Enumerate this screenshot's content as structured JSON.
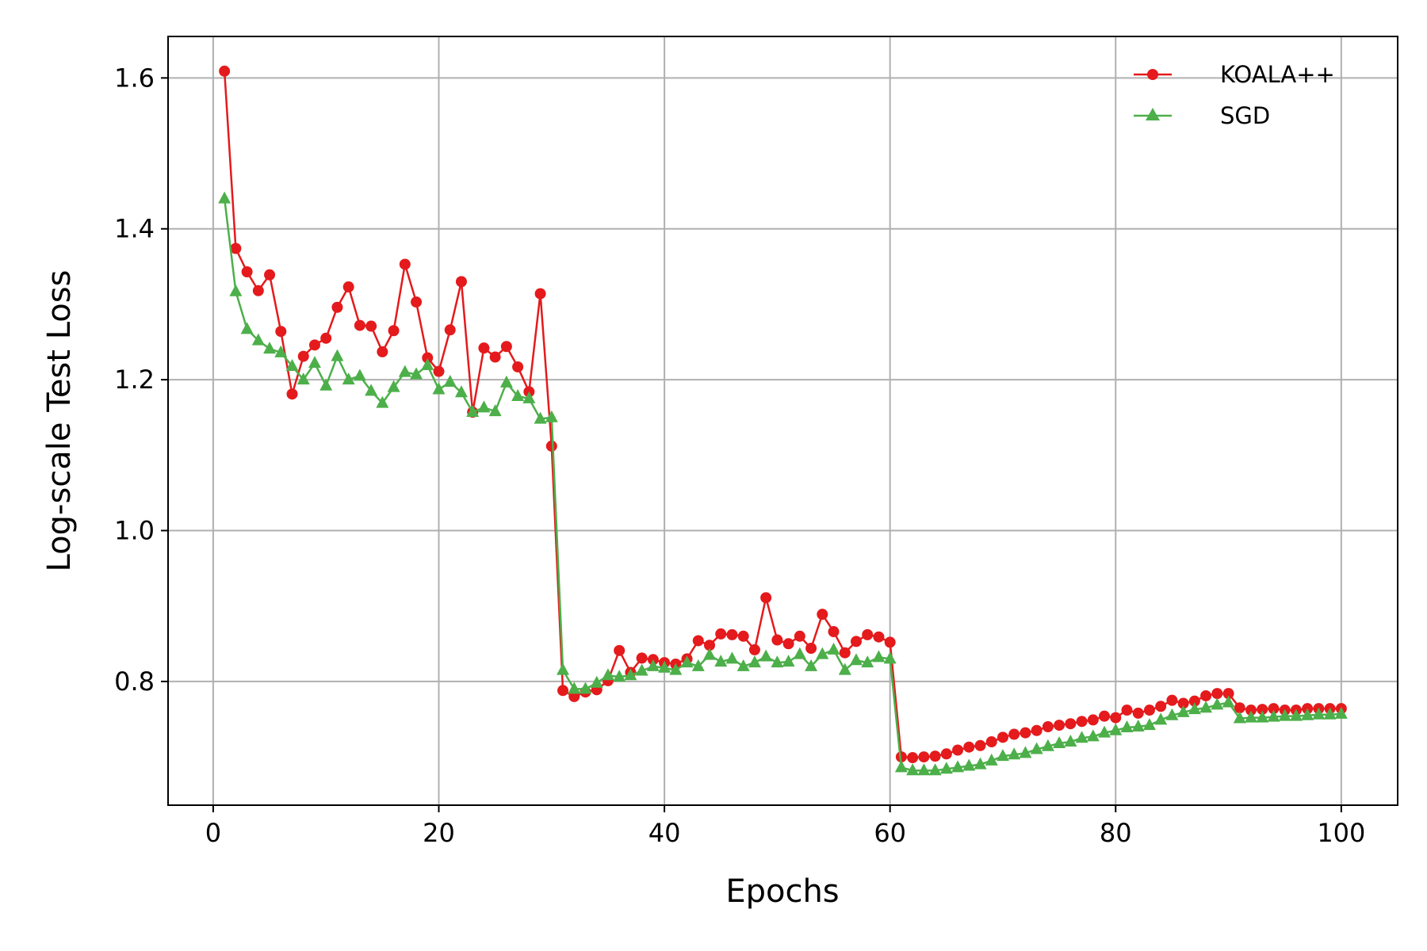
{
  "chart_data": {
    "type": "line",
    "title": "",
    "xlabel": "Epochs",
    "ylabel": "Log-scale Test Loss",
    "xlim": [
      -4,
      105
    ],
    "ylim": [
      0.636,
      1.655
    ],
    "xticks": [
      0,
      20,
      40,
      60,
      80,
      100
    ],
    "xtick_labels": [
      "0",
      "20",
      "40",
      "60",
      "80",
      "100"
    ],
    "yticks": [
      0.8,
      1.0,
      1.2,
      1.4,
      1.6
    ],
    "ytick_labels": [
      "0.8",
      "1.0",
      "1.2",
      "1.4",
      "1.6"
    ],
    "grid": true,
    "legend_position": "top-right",
    "x": [
      1,
      2,
      3,
      4,
      5,
      6,
      7,
      8,
      9,
      10,
      11,
      12,
      13,
      14,
      15,
      16,
      17,
      18,
      19,
      20,
      21,
      22,
      23,
      24,
      25,
      26,
      27,
      28,
      29,
      30,
      31,
      32,
      33,
      34,
      35,
      36,
      37,
      38,
      39,
      40,
      41,
      42,
      43,
      44,
      45,
      46,
      47,
      48,
      49,
      50,
      51,
      52,
      53,
      54,
      55,
      56,
      57,
      58,
      59,
      60,
      61,
      62,
      63,
      64,
      65,
      66,
      67,
      68,
      69,
      70,
      71,
      72,
      73,
      74,
      75,
      76,
      77,
      78,
      79,
      80,
      81,
      82,
      83,
      84,
      85,
      86,
      87,
      88,
      89,
      90,
      91,
      92,
      93,
      94,
      95,
      96,
      97,
      98,
      99,
      100
    ],
    "series": [
      {
        "name": "KOALA++",
        "color": "#e41a1c",
        "marker": "circle",
        "values": [
          1.609,
          1.374,
          1.343,
          1.318,
          1.339,
          1.264,
          1.181,
          1.231,
          1.246,
          1.255,
          1.296,
          1.323,
          1.272,
          1.271,
          1.237,
          1.265,
          1.353,
          1.303,
          1.229,
          1.211,
          1.266,
          1.33,
          1.157,
          1.242,
          1.23,
          1.244,
          1.217,
          1.184,
          1.314,
          1.112,
          0.788,
          0.78,
          0.786,
          0.789,
          0.801,
          0.841,
          0.812,
          0.831,
          0.829,
          0.825,
          0.823,
          0.83,
          0.854,
          0.848,
          0.863,
          0.862,
          0.86,
          0.842,
          0.911,
          0.855,
          0.85,
          0.86,
          0.844,
          0.889,
          0.866,
          0.838,
          0.853,
          0.862,
          0.859,
          0.852,
          0.7,
          0.699,
          0.7,
          0.701,
          0.704,
          0.709,
          0.713,
          0.715,
          0.72,
          0.726,
          0.73,
          0.732,
          0.735,
          0.74,
          0.742,
          0.744,
          0.747,
          0.749,
          0.754,
          0.752,
          0.762,
          0.758,
          0.762,
          0.767,
          0.775,
          0.771,
          0.774,
          0.781,
          0.784,
          0.784,
          0.765,
          0.762,
          0.763,
          0.764,
          0.762,
          0.762,
          0.764,
          0.764,
          0.764,
          0.764
        ]
      },
      {
        "name": "SGD",
        "color": "#4daf4a",
        "marker": "triangle",
        "values": [
          1.44,
          1.317,
          1.267,
          1.252,
          1.241,
          1.236,
          1.218,
          1.2,
          1.222,
          1.192,
          1.231,
          1.2,
          1.205,
          1.185,
          1.169,
          1.19,
          1.21,
          1.207,
          1.219,
          1.187,
          1.197,
          1.183,
          1.157,
          1.163,
          1.158,
          1.196,
          1.178,
          1.175,
          1.148,
          1.15,
          0.815,
          0.79,
          0.79,
          0.798,
          0.808,
          0.806,
          0.808,
          0.814,
          0.82,
          0.818,
          0.815,
          0.825,
          0.82,
          0.835,
          0.826,
          0.83,
          0.82,
          0.825,
          0.833,
          0.825,
          0.826,
          0.836,
          0.82,
          0.836,
          0.842,
          0.815,
          0.828,
          0.825,
          0.832,
          0.83,
          0.686,
          0.682,
          0.682,
          0.682,
          0.684,
          0.686,
          0.688,
          0.69,
          0.695,
          0.701,
          0.703,
          0.705,
          0.71,
          0.714,
          0.718,
          0.72,
          0.725,
          0.727,
          0.732,
          0.735,
          0.739,
          0.74,
          0.742,
          0.749,
          0.755,
          0.759,
          0.763,
          0.765,
          0.769,
          0.772,
          0.751,
          0.752,
          0.752,
          0.753,
          0.754,
          0.754,
          0.755,
          0.756,
          0.756,
          0.757
        ]
      }
    ]
  }
}
